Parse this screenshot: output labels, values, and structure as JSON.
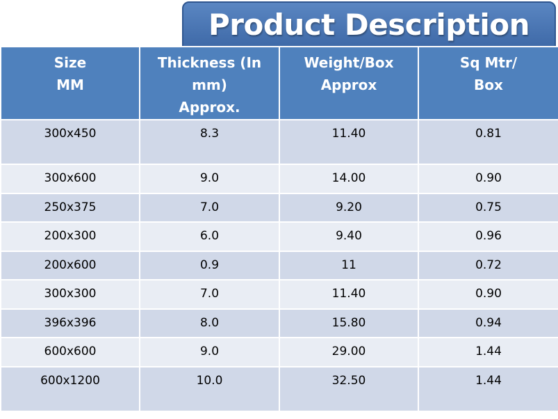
{
  "title": "Product Description",
  "headers": [
    [
      "Size",
      "MM"
    ],
    [
      "Thickness (In",
      "mm)",
      "Approx."
    ],
    [
      "Weight/Box",
      "Approx"
    ],
    [
      "Sq Mtr/",
      "Box"
    ]
  ],
  "rows": [
    [
      "300x450",
      "8.3",
      "11.40",
      "0.81"
    ],
    [
      "300x600",
      "9.0",
      "14.00",
      "0.90"
    ],
    [
      "250x375",
      "7.0",
      "9.20",
      "0.75"
    ],
    [
      "200x300",
      "6.0",
      "9.40",
      "0.96"
    ],
    [
      "200x600",
      "0.9",
      "11",
      "0.72"
    ],
    [
      "300x300",
      "7.0",
      "11.40",
      "0.90"
    ],
    [
      "396x396",
      "8.0",
      "15.80",
      "0.94"
    ],
    [
      "600x600",
      "9.0",
      "29.00",
      "1.44"
    ],
    [
      "600x1200",
      "10.0",
      "32.50",
      "1.44"
    ]
  ]
}
